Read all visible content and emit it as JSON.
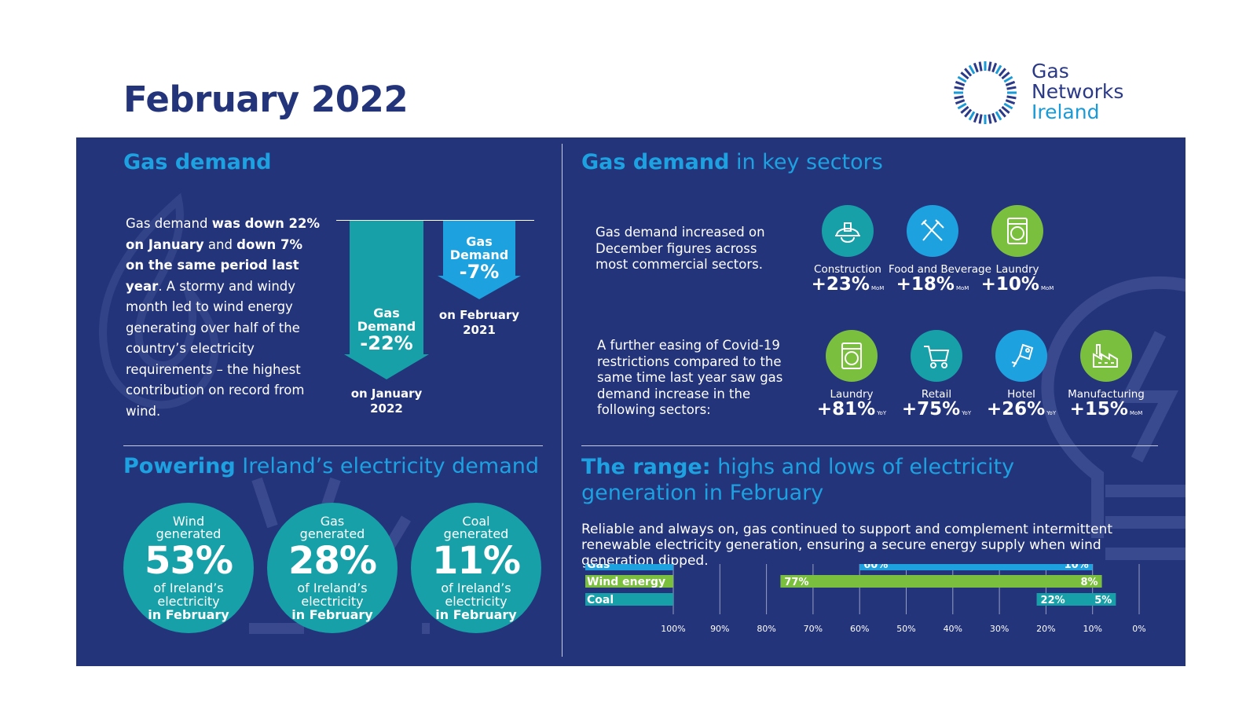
{
  "header": {
    "title": "February 2022",
    "logo": {
      "line1": "Gas",
      "line2": "Networks",
      "line3": "Ireland"
    }
  },
  "colors": {
    "navy": "#24347a",
    "blue": "#1da1e0",
    "teal": "#17a0a8",
    "green": "#7bbf3f",
    "cyan": "#1ea1df"
  },
  "gas_demand": {
    "title": "Gas demand",
    "text_parts": [
      "Gas demand ",
      "was down 22% on January",
      " and ",
      "down 7% on the same period last year",
      ". A stormy and windy month led to wind energy generating over half of the country’s electricity requirements – the highest contribution on record from wind."
    ],
    "arrow_jan": {
      "label1": "Gas",
      "label2": "Demand",
      "value": "-22%",
      "sub1": "on January",
      "sub2": "2022"
    },
    "arrow_feb": {
      "label1": "Gas",
      "label2": "Demand",
      "value": "-7%",
      "sub1": "on February",
      "sub2": "2021"
    }
  },
  "key_sectors": {
    "title_bold": "Gas demand",
    "title_light": " in key sectors",
    "intro1": "Gas demand increased on December figures across most commercial sectors.",
    "intro2": "A further easing of Covid-19 restrictions compared to the same time last year saw gas demand increase in the following sectors:",
    "row1": [
      {
        "name": "Construction",
        "value": "+23%",
        "suffix": "MoM",
        "icon": "hard-hat-icon",
        "color": "#17a0a8"
      },
      {
        "name": "Food and Beverage",
        "value": "+18%",
        "suffix": "MoM",
        "icon": "cutlery-icon",
        "color": "#1ea1df"
      },
      {
        "name": "Laundry",
        "value": "+10%",
        "suffix": "MoM",
        "icon": "washing-machine-icon",
        "color": "#7bbf3f"
      }
    ],
    "row2": [
      {
        "name": "Laundry",
        "value": "+81%",
        "suffix": "YoY",
        "icon": "washing-machine-icon",
        "color": "#7bbf3f"
      },
      {
        "name": "Retail",
        "value": "+75%",
        "suffix": "YoY",
        "icon": "shopping-cart-icon",
        "color": "#17a0a8"
      },
      {
        "name": "Hotel",
        "value": "+26%",
        "suffix": "YoY",
        "icon": "hotel-key-icon",
        "color": "#1ea1df"
      },
      {
        "name": "Manufacturing",
        "value": "+15%",
        "suffix": "MoM",
        "icon": "factory-icon",
        "color": "#7bbf3f"
      }
    ]
  },
  "powering": {
    "title_bold": "Powering",
    "title_light": " Ireland’s electricity demand",
    "circles": [
      {
        "line1": "Wind",
        "line2": "generated",
        "pct": "53%",
        "line3": "of Ireland’s",
        "line4": "electricity",
        "line5": "in February"
      },
      {
        "line1": "Gas",
        "line2": "generated",
        "pct": "28%",
        "line3": "of Ireland’s",
        "line4": "electricity",
        "line5": "in February"
      },
      {
        "line1": "Coal",
        "line2": "generated",
        "pct": "11%",
        "line3": "of Ireland’s",
        "line4": "electricity",
        "line5": "in February"
      }
    ]
  },
  "range": {
    "title_bold": "The range:",
    "title_light1": " highs and lows of electricity",
    "title_light2": "generation in February",
    "text": "Reliable and always on, gas continued to support and complement intermittent renewable electricity generation, ensuring a secure energy supply when wind generation dipped."
  },
  "chart_data": {
    "type": "bar",
    "categories": [
      "Gas",
      "Wind energy",
      "Coal"
    ],
    "series": [
      {
        "name": "Gas",
        "high": 60,
        "low": 10,
        "color": "#1ea1df"
      },
      {
        "name": "Wind energy",
        "high": 77,
        "low": 8,
        "color": "#7bbf3f"
      },
      {
        "name": "Coal",
        "high": 22,
        "low": 5,
        "color": "#17a0a8"
      }
    ],
    "xticks": [
      "100%",
      "90%",
      "80%",
      "70%",
      "60%",
      "50%",
      "40%",
      "30%",
      "20%",
      "10%",
      "0%"
    ],
    "xlim": [
      100,
      0
    ],
    "grid": true
  }
}
